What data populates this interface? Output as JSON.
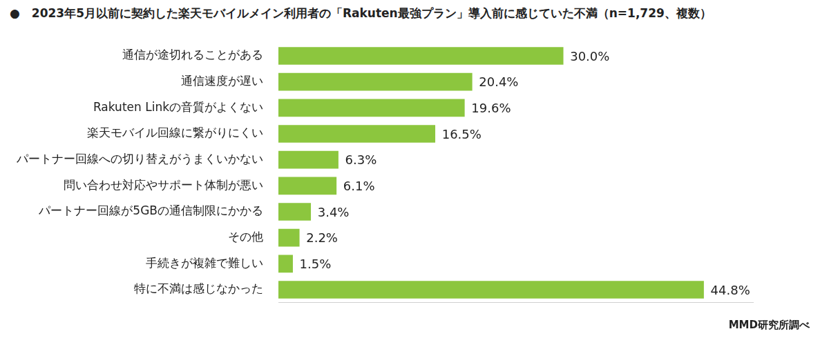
{
  "chart_data": {
    "type": "bar",
    "orientation": "horizontal",
    "title": "●　2023年5月以前に契約した楽天モバイルメイン利用者の「Rakuten最強プラン」導入前に感じていた不満（n=1,729、複数）",
    "annotations": [
      "MMD研究所調べ"
    ],
    "categories": [
      "通信が途切れることがある",
      "通信速度が遅い",
      "Rakuten Linkの音質がよくない",
      "楽天モバイル回線に繋がりにくい",
      "パートナー回線への切り替えがうまくいかない",
      "問い合わせ対応やサポート体制が悪い",
      "パートナー回線が5GBの通信制限にかかる",
      "その他",
      "手続きが複雑で難しい",
      "特に不満は感じなかった"
    ],
    "values": [
      30.0,
      20.4,
      19.6,
      16.5,
      6.3,
      6.1,
      3.4,
      2.2,
      1.5,
      44.8
    ],
    "value_labels": [
      "30.0%",
      "20.4%",
      "19.6%",
      "16.5%",
      "6.3%",
      "6.1%",
      "3.4%",
      "2.2%",
      "1.5%",
      "44.8%"
    ],
    "color": "#8cc63e",
    "xlim": [
      0,
      50
    ],
    "grid": false,
    "data_labels": true,
    "tick_labels": "y"
  }
}
